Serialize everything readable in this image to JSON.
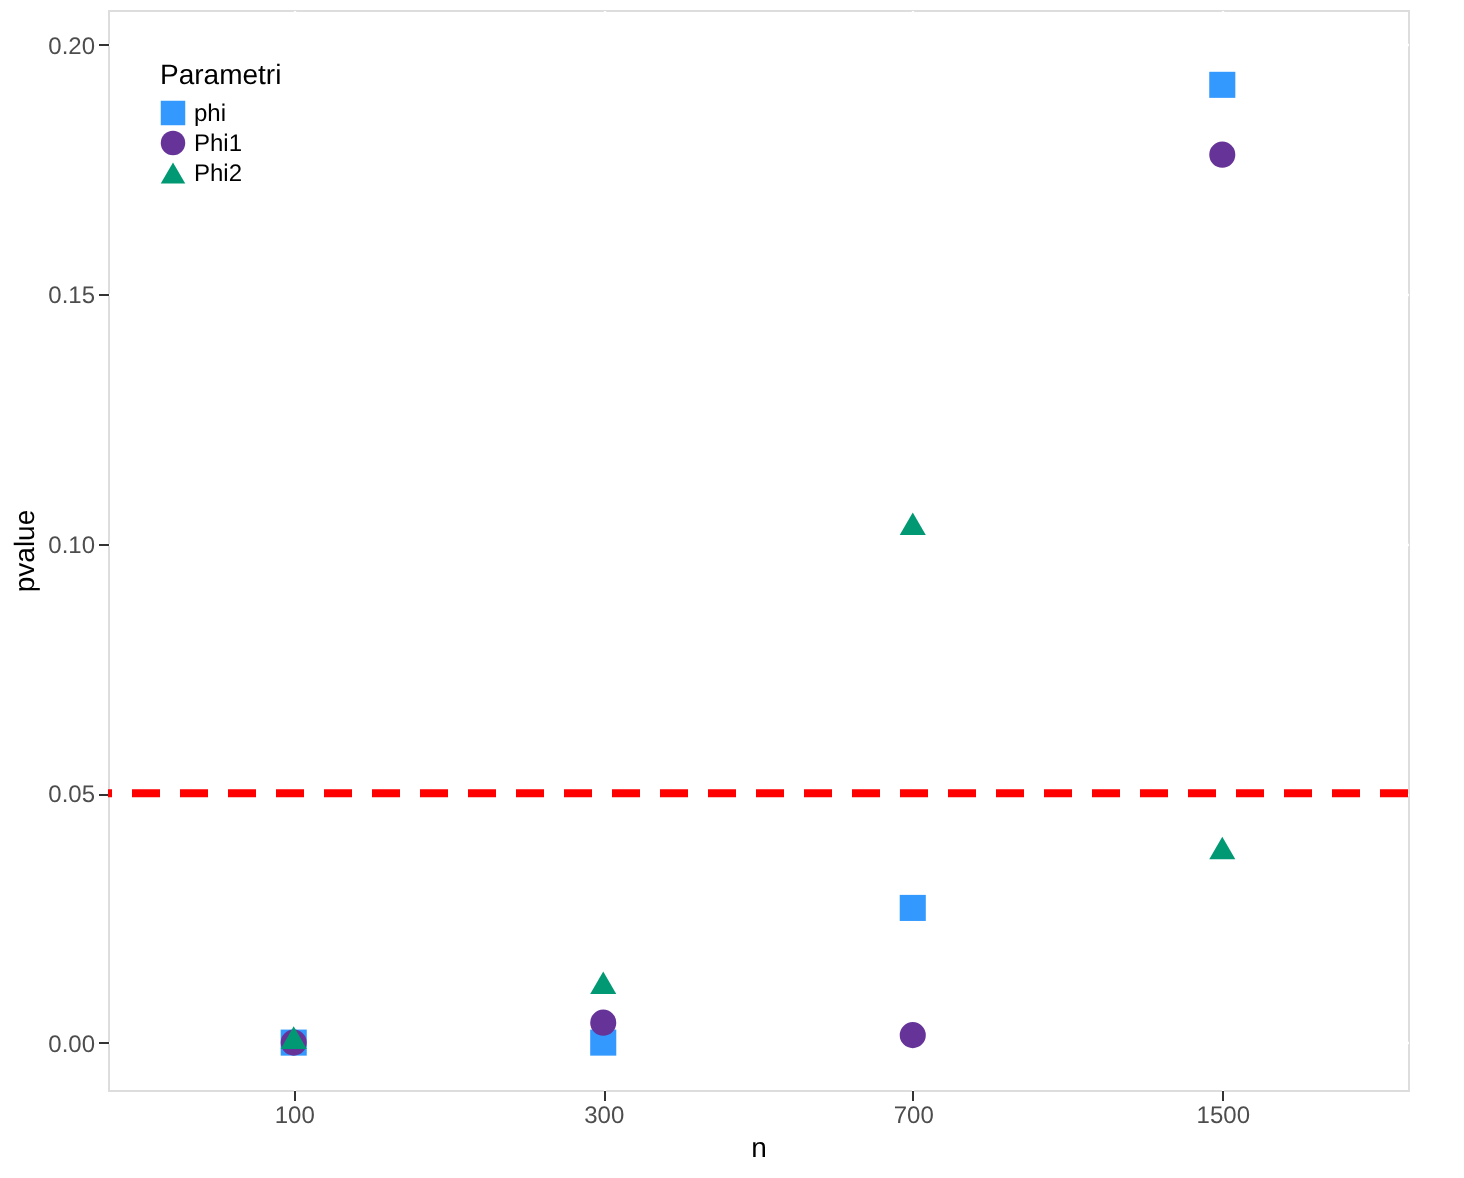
{
  "chart_data": {
    "type": "scatter",
    "xlabel": "n",
    "ylabel": "pvalue",
    "legend_title": "Parametri",
    "categories": [
      "100",
      "300",
      "700",
      "1500"
    ],
    "series": [
      {
        "name": "phi",
        "color": "#3399ff",
        "marker": "square",
        "values": [
          0.0,
          0.0,
          0.027,
          0.192
        ]
      },
      {
        "name": "Phi1",
        "color": "#663399",
        "marker": "circle",
        "values": [
          0.0,
          0.004,
          0.0015,
          0.178
        ]
      },
      {
        "name": "Phi2",
        "color": "#009973",
        "marker": "triangle",
        "values": [
          0.001,
          0.012,
          0.104,
          0.039
        ]
      }
    ],
    "ylim": [
      -0.0095,
      0.207
    ],
    "yticks": [
      {
        "value": 0,
        "label": "0.00"
      },
      {
        "value": 0.05,
        "label": "0.05"
      },
      {
        "value": 0.1,
        "label": "0.10"
      },
      {
        "value": 0.15,
        "label": "0.15"
      },
      {
        "value": 0.2,
        "label": "0.20"
      }
    ],
    "ref_lines": [
      {
        "axis": "y",
        "value": 0.05,
        "color": "#ff0000",
        "line_style": "dashed"
      }
    ],
    "grid": true,
    "legend": "top left"
  }
}
